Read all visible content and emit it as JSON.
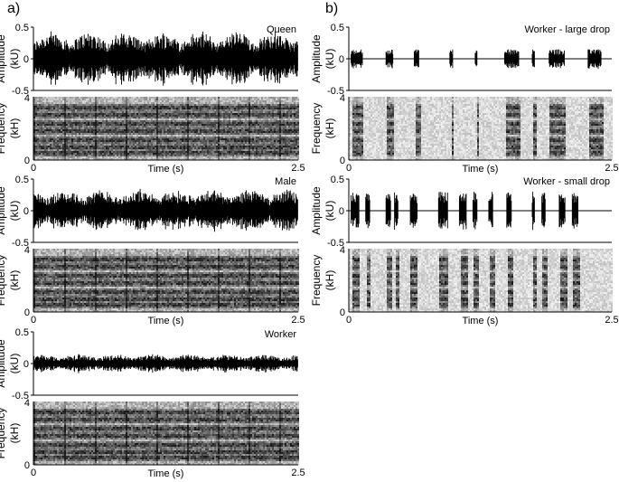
{
  "panel_labels": [
    "a)",
    "b)"
  ],
  "chart_data": [
    {
      "type": "area",
      "title": "Queen",
      "ylabel": "Amplitude\n(kU)",
      "yticks": [
        "0.5",
        "0",
        "-0.5"
      ],
      "ylim": [
        -0.5,
        0.5
      ],
      "xlim": [
        0,
        2.5
      ],
      "envelope": "dense",
      "peak": 0.45
    },
    {
      "type": "heatmap",
      "ylabel": "Frequency\n(kH)",
      "yticks": [
        "4",
        "0"
      ],
      "ylim": [
        0,
        4
      ],
      "xlabel": "Time (s)",
      "xticks": [
        "0",
        "2.5"
      ],
      "xlim": [
        0,
        2.5
      ],
      "tone": "dense"
    },
    {
      "type": "area",
      "title": "Male",
      "ylabel": "Amplitude\n(kU)",
      "yticks": [
        "0.5",
        "0",
        "-0.5"
      ],
      "ylim": [
        -0.5,
        0.5
      ],
      "xlim": [
        0,
        2.5
      ],
      "envelope": "dense",
      "peak": 0.35
    },
    {
      "type": "heatmap",
      "ylabel": "Frequency\n(kH)",
      "yticks": [
        "4",
        "0"
      ],
      "ylim": [
        0,
        4
      ],
      "xlabel": "Time (s)",
      "xticks": [
        "0",
        "2.5"
      ],
      "xlim": [
        0,
        2.5
      ],
      "tone": "dense"
    },
    {
      "type": "area",
      "title": "Worker",
      "ylabel": "Amplitude\n(kU)",
      "yticks": [
        "0.5",
        "0",
        "-0.5"
      ],
      "ylim": [
        -0.5,
        0.5
      ],
      "xlim": [
        0,
        2.5
      ],
      "envelope": "dense",
      "peak": 0.15
    },
    {
      "type": "heatmap",
      "ylabel": "Frequency\n(kH)",
      "yticks": [
        "4",
        "0"
      ],
      "ylim": [
        0,
        4
      ],
      "xlabel": "Time (s)",
      "xticks": [
        "0",
        "2.5"
      ],
      "xlim": [
        0,
        2.5
      ],
      "tone": "dense"
    },
    {
      "type": "area",
      "title": "Worker - large drop",
      "ylabel": "Amplitude\n(kU)",
      "yticks": [
        "0.5",
        "0",
        "-0.5"
      ],
      "ylim": [
        -0.5,
        0.5
      ],
      "xlim": [
        0,
        2.5
      ],
      "envelope": "bursts",
      "peak": 0.15,
      "bursts": [
        [
          0.02,
          0.13
        ],
        [
          0.35,
          0.42
        ],
        [
          0.62,
          0.67
        ],
        [
          0.96,
          0.99
        ],
        [
          1.2,
          1.22
        ],
        [
          1.48,
          1.62
        ],
        [
          1.74,
          1.77
        ],
        [
          1.9,
          2.05
        ],
        [
          2.27,
          2.4
        ]
      ]
    },
    {
      "type": "heatmap",
      "ylabel": "Frequency\n(kH)",
      "yticks": [
        "4",
        "0"
      ],
      "ylim": [
        0,
        4
      ],
      "xlabel": "Time (s)",
      "xticks": [
        "0",
        "2.5"
      ],
      "xlim": [
        0,
        2.5
      ],
      "tone": "bursts",
      "bursts": [
        [
          0.02,
          0.13
        ],
        [
          0.35,
          0.42
        ],
        [
          0.62,
          0.67
        ],
        [
          0.96,
          0.99
        ],
        [
          1.2,
          1.22
        ],
        [
          1.48,
          1.62
        ],
        [
          1.74,
          1.77
        ],
        [
          1.9,
          2.05
        ],
        [
          2.27,
          2.4
        ]
      ]
    },
    {
      "type": "area",
      "title": "Worker - small drop",
      "ylabel": "Amplitude\n(kU)",
      "yticks": [
        "0.5",
        "0",
        "-0.5"
      ],
      "ylim": [
        -0.5,
        0.5
      ],
      "xlim": [
        0,
        2.5
      ],
      "envelope": "bursts",
      "peak": 0.3,
      "bursts": [
        [
          0.02,
          0.1
        ],
        [
          0.16,
          0.2
        ],
        [
          0.35,
          0.4
        ],
        [
          0.43,
          0.47
        ],
        [
          0.58,
          0.65
        ],
        [
          0.85,
          0.94
        ],
        [
          1.05,
          1.12
        ],
        [
          1.18,
          1.22
        ],
        [
          1.33,
          1.37
        ],
        [
          1.5,
          1.55
        ],
        [
          1.74,
          1.77
        ],
        [
          1.83,
          1.87
        ],
        [
          2.0,
          2.06
        ],
        [
          2.12,
          2.18
        ]
      ]
    },
    {
      "type": "heatmap",
      "ylabel": "Frequency\n(kH)",
      "yticks": [
        "4",
        "0"
      ],
      "ylim": [
        0,
        4
      ],
      "xlabel": "Time (s)",
      "xticks": [
        "0",
        "2.5"
      ],
      "xlim": [
        0,
        2.5
      ],
      "tone": "bursts",
      "bursts": [
        [
          0.02,
          0.1
        ],
        [
          0.16,
          0.2
        ],
        [
          0.35,
          0.4
        ],
        [
          0.43,
          0.47
        ],
        [
          0.58,
          0.65
        ],
        [
          0.85,
          0.94
        ],
        [
          1.05,
          1.12
        ],
        [
          1.18,
          1.22
        ],
        [
          1.33,
          1.37
        ],
        [
          1.5,
          1.55
        ],
        [
          1.74,
          1.77
        ],
        [
          1.83,
          1.87
        ],
        [
          2.0,
          2.06
        ],
        [
          2.12,
          2.18
        ]
      ]
    }
  ]
}
